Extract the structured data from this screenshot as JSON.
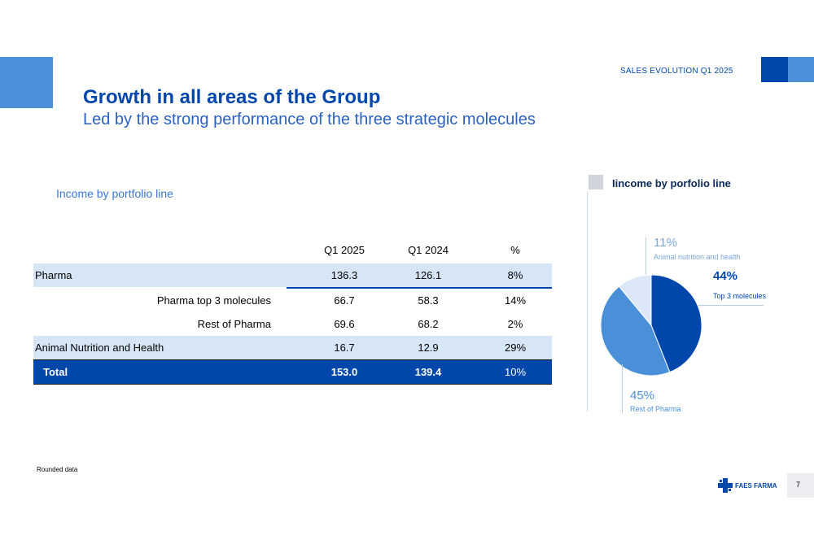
{
  "header": {
    "section_label": "SALES EVOLUTION Q1 2025",
    "title": "Growth in all areas of the Group",
    "subtitle": "Led by the strong performance of the three strategic molecules"
  },
  "table": {
    "title": "Income by portfolio line",
    "columns": [
      "Q1 2025",
      "Q1 2024",
      "%"
    ],
    "rows": [
      {
        "label": "Pharma",
        "q1_2025": "136.3",
        "q1_2024": "126.1",
        "pct": "8%"
      },
      {
        "label": "Pharma top 3 molecules",
        "q1_2025": "66.7",
        "q1_2024": "58.3",
        "pct": "14%"
      },
      {
        "label": "Rest of Pharma",
        "q1_2025": "69.6",
        "q1_2024": "68.2",
        "pct": "2%"
      },
      {
        "label": "Animal Nutrition and Health",
        "q1_2025": "16.7",
        "q1_2024": "12.9",
        "pct": "29%"
      },
      {
        "label": "Total",
        "q1_2025": "153.0",
        "q1_2024": "139.4",
        "pct": "10%"
      }
    ]
  },
  "chart_data": {
    "type": "pie",
    "title": "Iincome by porfolio line",
    "slices": [
      {
        "label": "Top 3 molecules",
        "pct_label": "44%",
        "value": 44,
        "color": "#0047ab"
      },
      {
        "label": "Rest of Pharma",
        "pct_label": "45%",
        "value": 45,
        "color": "#4a90d9"
      },
      {
        "label": "Animal nutrition and health",
        "pct_label": "11%",
        "value": 11,
        "color": "#dce8f7"
      }
    ]
  },
  "footer": {
    "note": "Rounded data",
    "logo_text": "FAES FARMA",
    "page_number": "7"
  }
}
